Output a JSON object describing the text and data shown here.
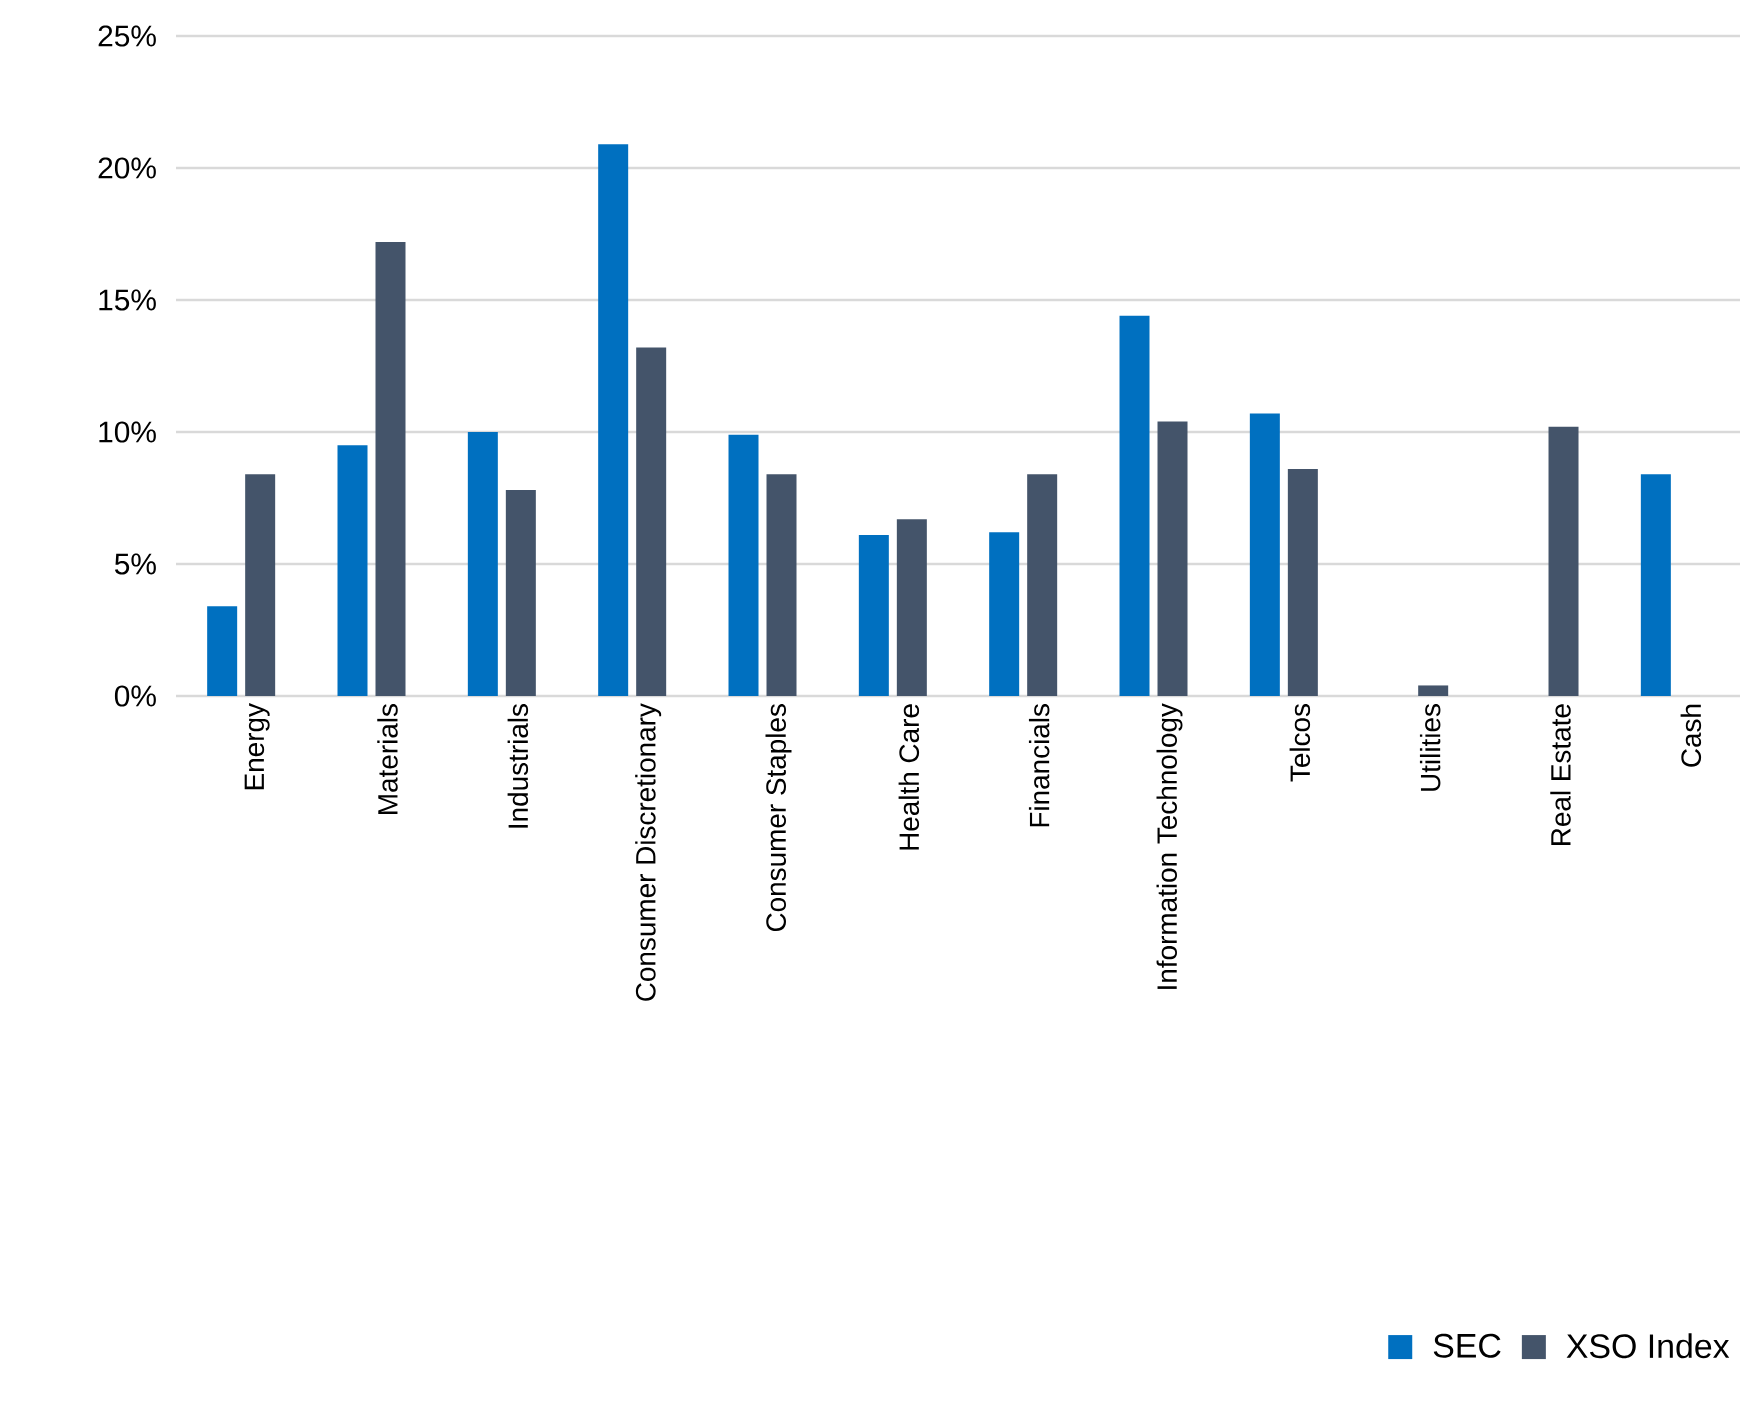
{
  "chart_data": {
    "type": "bar",
    "categories": [
      "Energy",
      "Materials",
      "Industrials",
      "Consumer Discretionary",
      "Consumer Staples",
      "Health Care",
      "Financials",
      "Information Technology",
      "Telcos",
      "Utilities",
      "Real Estate",
      "Cash"
    ],
    "series": [
      {
        "name": "SEC",
        "color": "#0070c0",
        "values": [
          3.4,
          9.5,
          10.0,
          20.9,
          9.9,
          6.1,
          6.2,
          14.4,
          10.7,
          0,
          0,
          8.4
        ]
      },
      {
        "name": "XSO Index",
        "color": "#44546a",
        "values": [
          8.4,
          17.2,
          7.8,
          13.2,
          8.4,
          6.7,
          8.4,
          10.4,
          8.6,
          0.4,
          10.2,
          0
        ]
      }
    ],
    "ylim": [
      0,
      25
    ],
    "yticks": [
      {
        "value": 0,
        "label": "0%"
      },
      {
        "value": 5,
        "label": "5%"
      },
      {
        "value": 10,
        "label": "10%"
      },
      {
        "value": 15,
        "label": "15%"
      },
      {
        "value": 20,
        "label": "20%"
      },
      {
        "value": 25,
        "label": "25%"
      }
    ],
    "grid": "y",
    "legend": "bottom right"
  }
}
